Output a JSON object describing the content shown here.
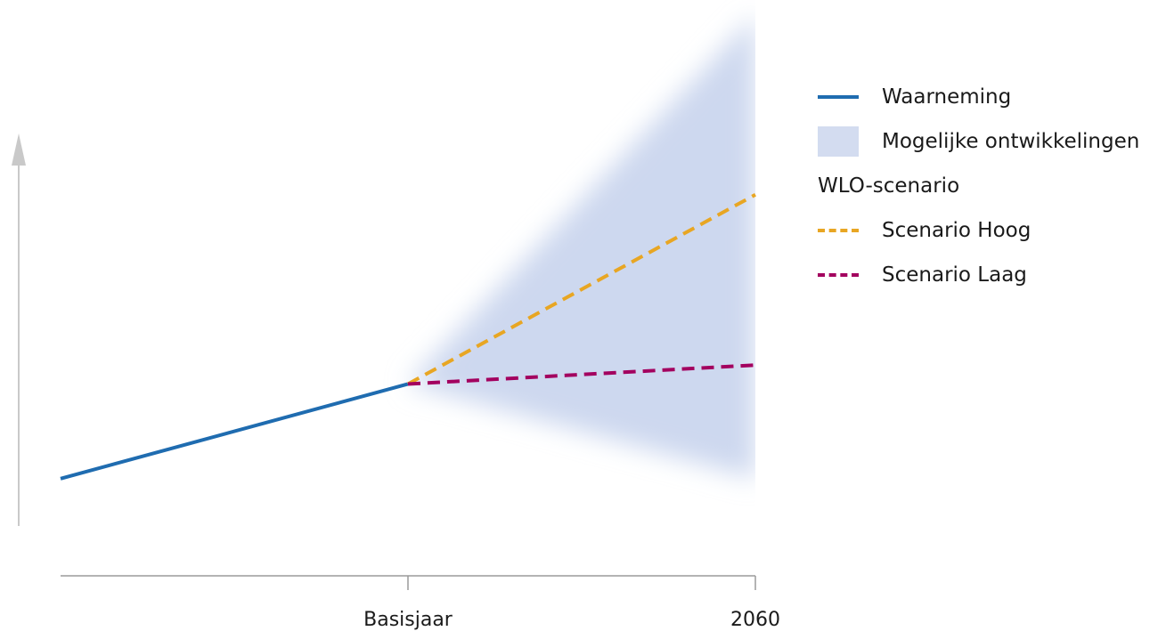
{
  "chart_data": {
    "type": "line",
    "x_ticks": [
      "",
      "Basisjaar",
      "2060"
    ],
    "series": [
      {
        "name": "Waarneming",
        "style": "solid",
        "color": "#1f6cb0",
        "points": [
          [
            0,
            1.0
          ],
          [
            1,
            2.0
          ]
        ]
      },
      {
        "name": "Scenario Hoog",
        "style": "dashed",
        "color": "#e8a623",
        "points": [
          [
            1,
            2.0
          ],
          [
            2,
            4.0
          ]
        ]
      },
      {
        "name": "Scenario Laag",
        "style": "dashed",
        "color": "#a3005f",
        "points": [
          [
            1,
            2.0
          ],
          [
            2,
            2.2
          ]
        ]
      }
    ],
    "band": {
      "name": "Mogelijke ontwikkelingen",
      "color": "#cdd8ef",
      "x": [
        1,
        2
      ],
      "lower": [
        2.0,
        1.0
      ],
      "upper": [
        2.0,
        5.9
      ]
    },
    "ylim": [
      0.5,
      6.0
    ],
    "legend": {
      "position": "right",
      "group_heading": "WLO-scenario"
    }
  }
}
